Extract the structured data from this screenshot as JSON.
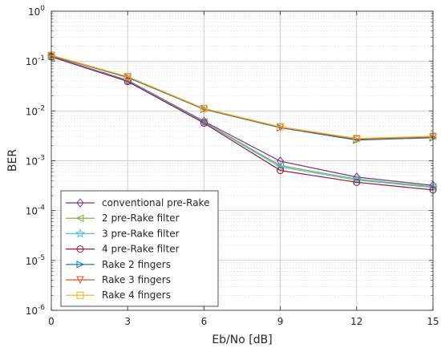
{
  "chart_data": {
    "type": "line",
    "title": "",
    "xlabel": "Eb/No [dB]",
    "ylabel": "BER",
    "x": [
      0,
      3,
      6,
      9,
      12,
      15
    ],
    "xticks": [
      "0",
      "3",
      "6",
      "9",
      "12",
      "15"
    ],
    "xlim": [
      0,
      15
    ],
    "ylim": [
      1e-06,
      1
    ],
    "yscale": "log",
    "yticks": [
      {
        "base": "10",
        "exp": "0",
        "value": 1
      },
      {
        "base": "10",
        "exp": "-1",
        "value": 0.1
      },
      {
        "base": "10",
        "exp": "-2",
        "value": 0.01
      },
      {
        "base": "10",
        "exp": "-3",
        "value": 0.001
      },
      {
        "base": "10",
        "exp": "-4",
        "value": 0.0001
      },
      {
        "base": "10",
        "exp": "-5",
        "value": 1e-05
      },
      {
        "base": "10",
        "exp": "-6",
        "value": 1e-06
      }
    ],
    "grid": true,
    "legend_position": "bottom-left",
    "series": [
      {
        "name": "conventional pre-Rake",
        "color": "#7E2F8E",
        "marker": "diamond",
        "values": [
          0.125,
          0.041,
          0.0062,
          0.00098,
          0.00047,
          0.00032
        ]
      },
      {
        "name": "2 pre-Rake filter",
        "color": "#77AC30",
        "marker": "triangle-left",
        "values": [
          0.124,
          0.04,
          0.006,
          0.0008,
          0.00043,
          0.0003
        ]
      },
      {
        "name": "3 pre-Rake filter",
        "color": "#4DBEEE",
        "marker": "star",
        "values": [
          0.123,
          0.04,
          0.0059,
          0.00075,
          0.00041,
          0.00029
        ]
      },
      {
        "name": "4 pre-Rake filter",
        "color": "#A2142F",
        "marker": "circle",
        "values": [
          0.122,
          0.039,
          0.0057,
          0.00064,
          0.00037,
          0.00026
        ]
      },
      {
        "name": "Rake 2 fingers",
        "color": "#0072BD",
        "marker": "triangle-right",
        "values": [
          0.128,
          0.047,
          0.0108,
          0.0046,
          0.0026,
          0.0029
        ]
      },
      {
        "name": "Rake 3 fingers",
        "color": "#D95319",
        "marker": "triangle-down",
        "values": [
          0.13,
          0.048,
          0.011,
          0.0047,
          0.0027,
          0.003
        ]
      },
      {
        "name": "Rake 4 fingers",
        "color": "#EDB120",
        "marker": "square",
        "values": [
          0.131,
          0.049,
          0.0112,
          0.0048,
          0.0028,
          0.0031
        ]
      }
    ]
  }
}
